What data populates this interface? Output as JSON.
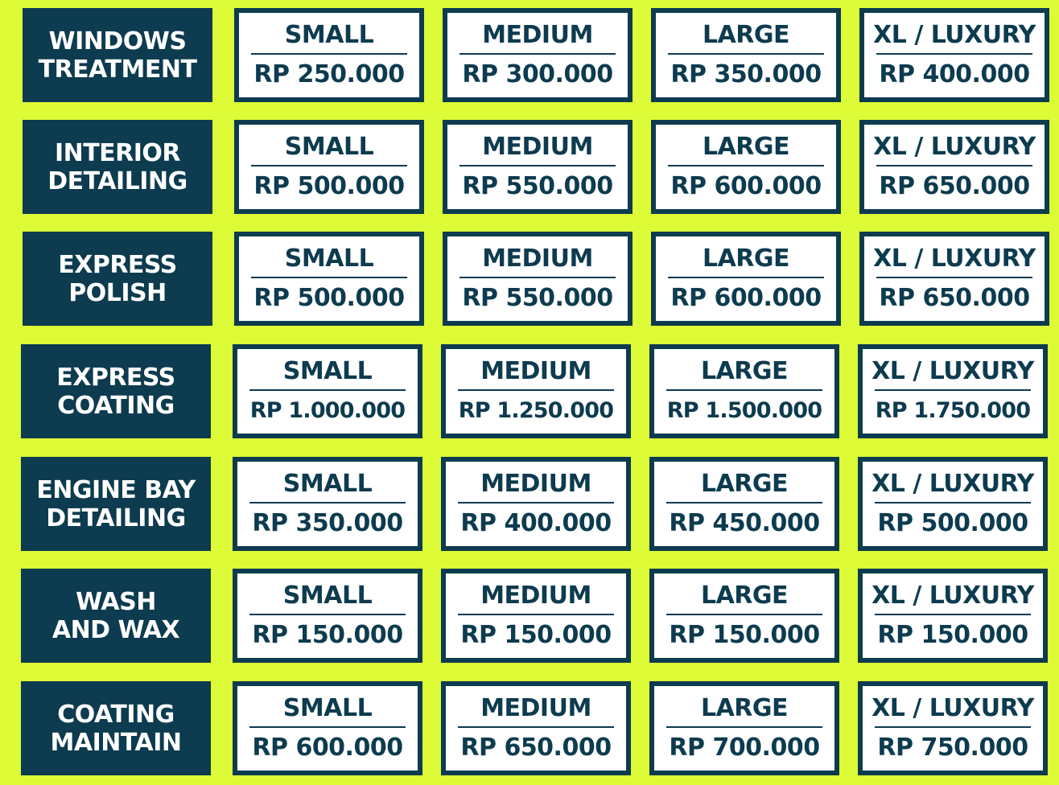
{
  "colors": {
    "background": "#ddfb37",
    "dark_blue": "#0d3b4f",
    "card_bg": "#ffffff"
  },
  "rows": [
    {
      "service": "WINDOWS\nTREATMENT",
      "prices": [
        {
          "size": "SMALL",
          "price": "RP 250.000"
        },
        {
          "size": "MEDIUM",
          "price": "RP 300.000"
        },
        {
          "size": "LARGE",
          "price": "RP 350.000"
        },
        {
          "size": "XL / LUXURY",
          "price": "RP 400.000"
        }
      ]
    },
    {
      "service": "INTERIOR\nDETAILING",
      "prices": [
        {
          "size": "SMALL",
          "price": "RP 500.000"
        },
        {
          "size": "MEDIUM",
          "price": "RP 550.000"
        },
        {
          "size": "LARGE",
          "price": "RP 600.000"
        },
        {
          "size": "XL / LUXURY",
          "price": "RP 650.000"
        }
      ]
    },
    {
      "service": "EXPRESS\nPOLISH",
      "prices": [
        {
          "size": "SMALL",
          "price": "RP 500.000"
        },
        {
          "size": "MEDIUM",
          "price": "RP 550.000"
        },
        {
          "size": "LARGE",
          "price": "RP 600.000"
        },
        {
          "size": "XL / LUXURY",
          "price": "RP 650.000"
        }
      ]
    },
    {
      "service": "EXPRESS\nCOATING",
      "prices": [
        {
          "size": "SMALL",
          "price": "RP 1.000.000"
        },
        {
          "size": "MEDIUM",
          "price": "RP 1.250.000"
        },
        {
          "size": "LARGE",
          "price": "RP 1.500.000"
        },
        {
          "size": "XL / LUXURY",
          "price": "RP 1.750.000"
        }
      ]
    },
    {
      "service": "ENGINE BAY\nDETAILING",
      "prices": [
        {
          "size": "SMALL",
          "price": "RP 350.000"
        },
        {
          "size": "MEDIUM",
          "price": "RP 400.000"
        },
        {
          "size": "LARGE",
          "price": "RP 450.000"
        },
        {
          "size": "XL / LUXURY",
          "price": "RP 500.000"
        }
      ]
    },
    {
      "service": "WASH\nAND WAX",
      "prices": [
        {
          "size": "SMALL",
          "price": "RP 150.000"
        },
        {
          "size": "MEDIUM",
          "price": "RP 150.000"
        },
        {
          "size": "LARGE",
          "price": "RP 150.000"
        },
        {
          "size": "XL / LUXURY",
          "price": "RP 150.000"
        }
      ]
    },
    {
      "service": "COATING\nMAINTAIN",
      "prices": [
        {
          "size": "SMALL",
          "price": "RP 600.000"
        },
        {
          "size": "MEDIUM",
          "price": "RP 650.000"
        },
        {
          "size": "LARGE",
          "price": "RP 700.000"
        },
        {
          "size": "XL / LUXURY",
          "price": "RP 750.000"
        }
      ]
    }
  ]
}
